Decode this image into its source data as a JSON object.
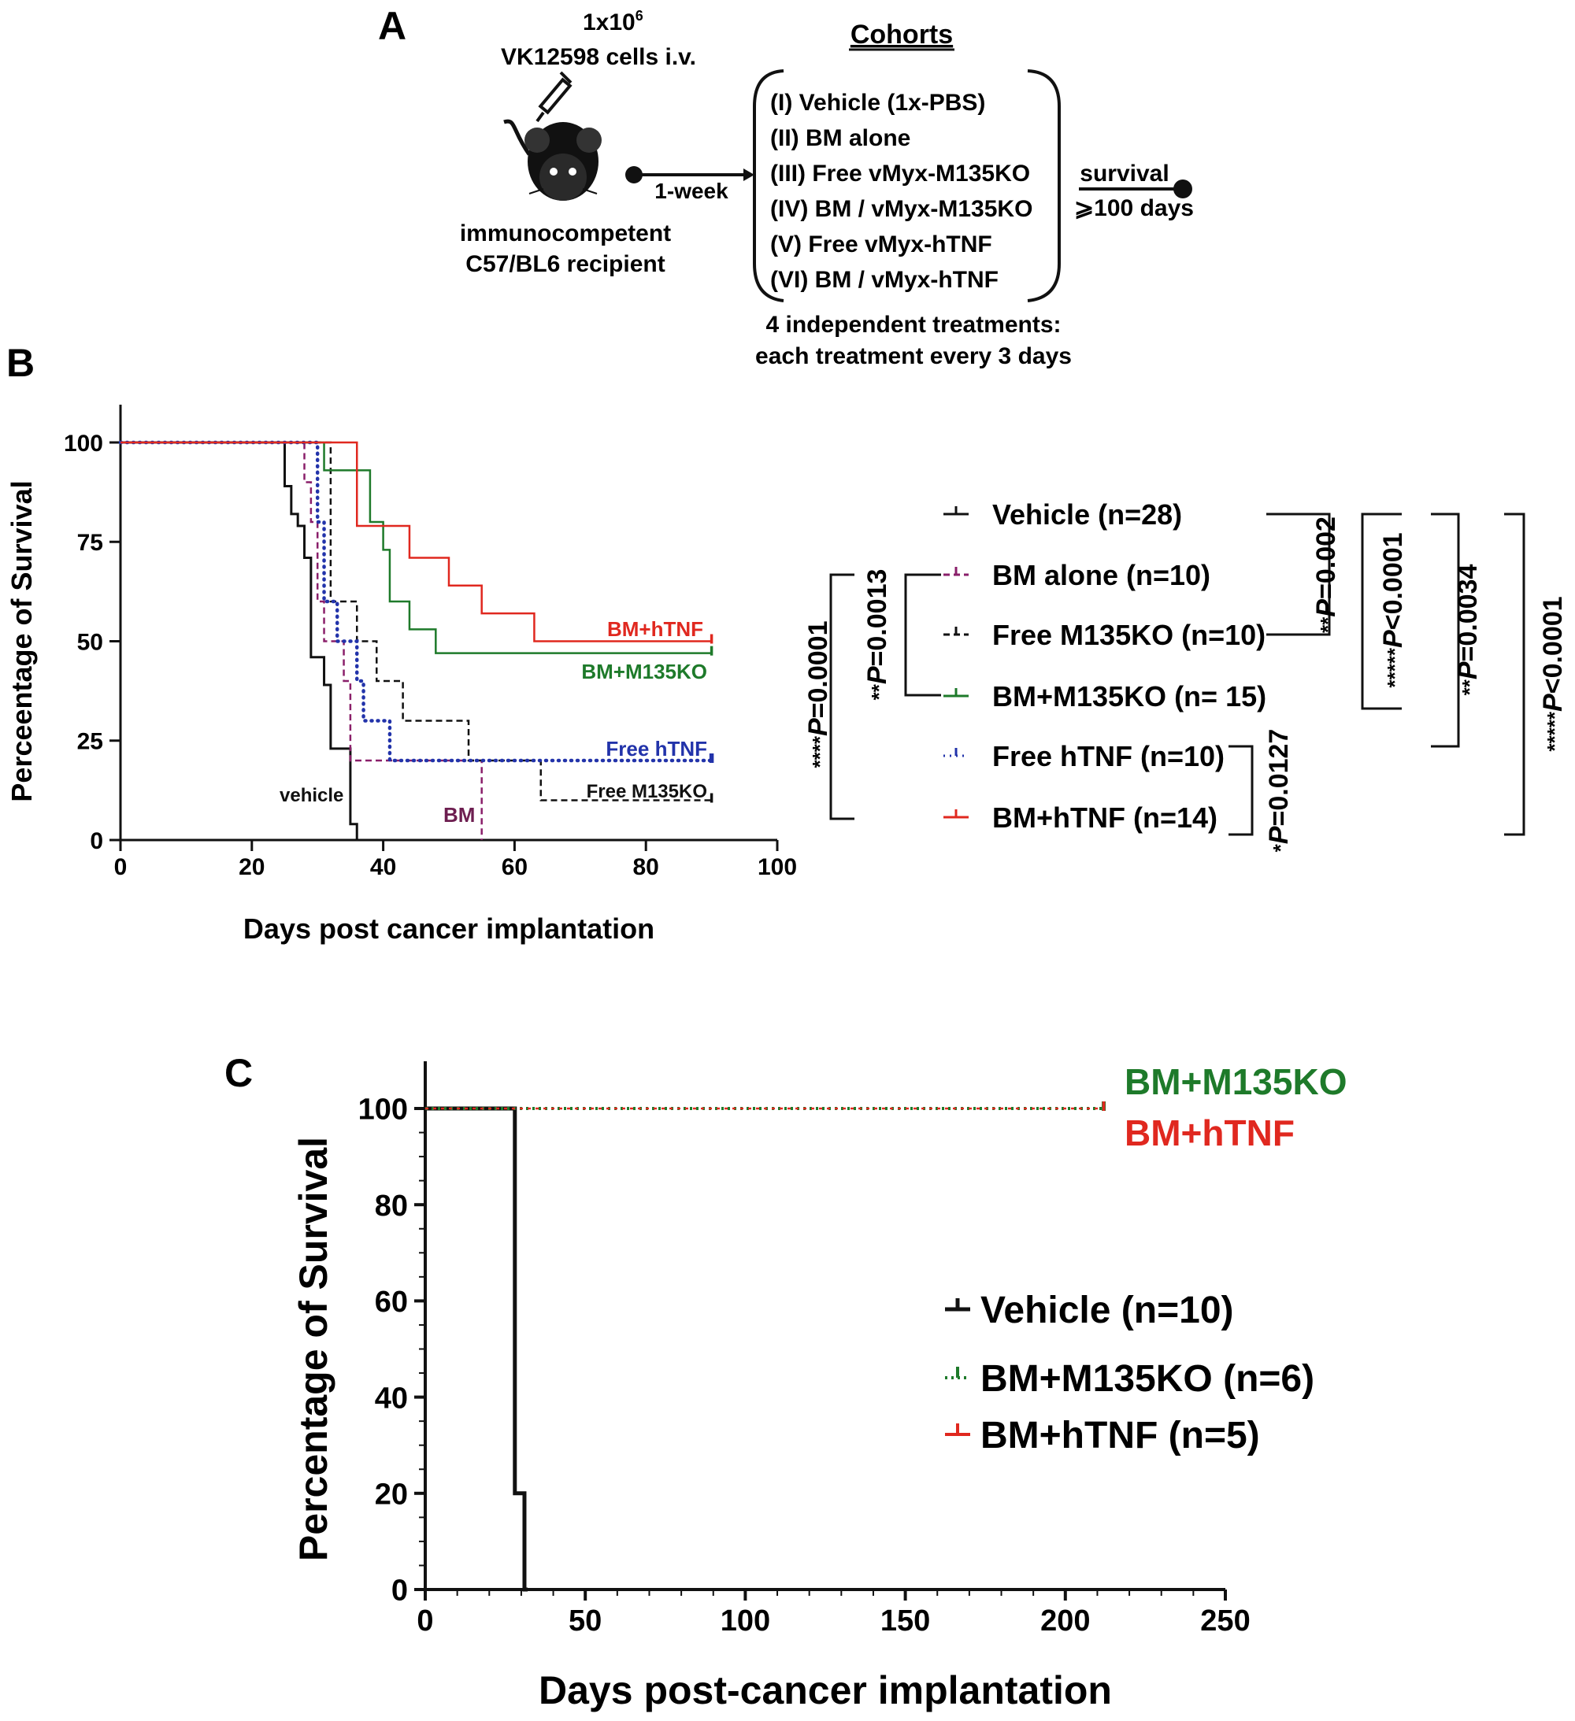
{
  "colors": {
    "black": "#111111",
    "purple": "#8a1f6a",
    "green": "#1e7a2a",
    "blue": "#2233aa",
    "red": "#e0281f",
    "darkred": "#6d1e50"
  },
  "panelA": {
    "label": "A",
    "cells_line1": "1x10",
    "cells_exponent": "6",
    "cells_line2": "VK12598 cells i.v.",
    "mouse_icon": "mouse-icon",
    "syringe_icon": "syringe-icon",
    "recipient_line1": "immunocompetent",
    "recipient_line2": "C57/BL6 recipient",
    "interval": "1-week",
    "cohorts_title": "Cohorts",
    "cohorts": [
      "(I) Vehicle (1x-PBS)",
      "(II) BM alone",
      "(III) Free vMyx-M135KO",
      "(IV) BM / vMyx-M135KO",
      "(V) Free vMyx-hTNF",
      "(VI) BM / vMyx-hTNF"
    ],
    "survival_label": "survival",
    "survival_days": "⩾100 days",
    "treatments_line1": "4 independent treatments:",
    "treatments_line2": "each treatment every 3 days"
  },
  "panelB": {
    "label": "B",
    "legend": [
      "Vehicle (n=28)",
      "BM alone (n=10)",
      "Free M135KO (n=10)",
      "BM+M135KO (n= 15)",
      "Free hTNF (n=10)",
      "BM+hTNF (n=14)"
    ],
    "stats": [
      {
        "stars": "****",
        "p": "P",
        "value": "=0.0001"
      },
      {
        "stars": "**",
        "p": "P",
        "value": "=0.0013"
      },
      {
        "stars": "**",
        "p": "P",
        "value": "=0.002"
      },
      {
        "stars": "*****",
        "p": "P",
        "value": "<0.0001"
      },
      {
        "stars": "**",
        "p": "P",
        "value": "=0.0034"
      },
      {
        "stars": "*****",
        "p": "P",
        "value": "<0.0001"
      },
      {
        "stars": "*",
        "p": "P",
        "value": "=0.0127"
      }
    ]
  },
  "panelC": {
    "label": "C",
    "top_labels": [
      "BM+M135KO",
      "BM+hTNF"
    ],
    "legend": [
      "Vehicle (n=10)",
      "BM+M135KO (n=6)",
      "BM+hTNF (n=5)"
    ]
  },
  "chart_data": [
    {
      "type": "line",
      "subtype": "kaplan-meier",
      "xlabel": "Days post cancer implantation",
      "ylabel": "Perceentage of Survival",
      "xlim": [
        0,
        100
      ],
      "ylim": [
        0,
        100
      ],
      "xticks": [
        0,
        20,
        40,
        60,
        80,
        100
      ],
      "yticks": [
        0,
        25,
        50,
        75,
        100
      ],
      "series": [
        {
          "name": "Vehicle (n=28)",
          "inline_label": "vehicle",
          "x": [
            0,
            25,
            26,
            27,
            28,
            29,
            31,
            32,
            35,
            36,
            38
          ],
          "y": [
            100,
            89,
            82,
            79,
            71,
            46,
            39,
            23,
            4,
            0,
            0
          ]
        },
        {
          "name": "BM alone (n=10)",
          "inline_label": "BM",
          "x": [
            0,
            28,
            29,
            30,
            31,
            34,
            35,
            55
          ],
          "y": [
            100,
            90,
            80,
            60,
            50,
            40,
            20,
            0
          ]
        },
        {
          "name": "Free M135KO (n=10)",
          "inline_label": "Free M135KO",
          "x": [
            0,
            32,
            36,
            39,
            43,
            53,
            64,
            90
          ],
          "y": [
            100,
            60,
            50,
            40,
            30,
            20,
            10,
            10
          ]
        },
        {
          "name": "BM+M135KO (n= 15)",
          "inline_label": "BM+M135KO",
          "x": [
            0,
            31,
            38,
            40,
            41,
            44,
            48,
            90
          ],
          "y": [
            100,
            93,
            80,
            73,
            60,
            53,
            47,
            47
          ]
        },
        {
          "name": "Free hTNF (n=10)",
          "inline_label": "Free hTNF",
          "x": [
            0,
            30,
            31,
            33,
            36,
            37,
            41,
            90
          ],
          "y": [
            100,
            80,
            60,
            50,
            40,
            30,
            20,
            20
          ]
        },
        {
          "name": "BM+hTNF (n=14)",
          "inline_label": "BM+hTNF",
          "x": [
            0,
            36,
            44,
            50,
            55,
            63,
            90
          ],
          "y": [
            100,
            79,
            71,
            64,
            57,
            50,
            50
          ]
        }
      ]
    },
    {
      "type": "line",
      "subtype": "kaplan-meier",
      "xlabel": "Days post-cancer implantation",
      "ylabel": "Percentage of Survival",
      "xlim": [
        0,
        250
      ],
      "ylim": [
        0,
        100
      ],
      "xticks": [
        0,
        50,
        100,
        150,
        200,
        250
      ],
      "yticks": [
        0,
        20,
        40,
        60,
        80,
        100
      ],
      "series": [
        {
          "name": "Vehicle (n=10)",
          "x": [
            0,
            28,
            31,
            32
          ],
          "y": [
            100,
            20,
            0,
            0
          ]
        },
        {
          "name": "BM+M135KO (n=6)",
          "x": [
            0,
            212
          ],
          "y": [
            100,
            100
          ]
        },
        {
          "name": "BM+hTNF (n=5)",
          "x": [
            0,
            212
          ],
          "y": [
            100,
            100
          ]
        }
      ]
    }
  ]
}
